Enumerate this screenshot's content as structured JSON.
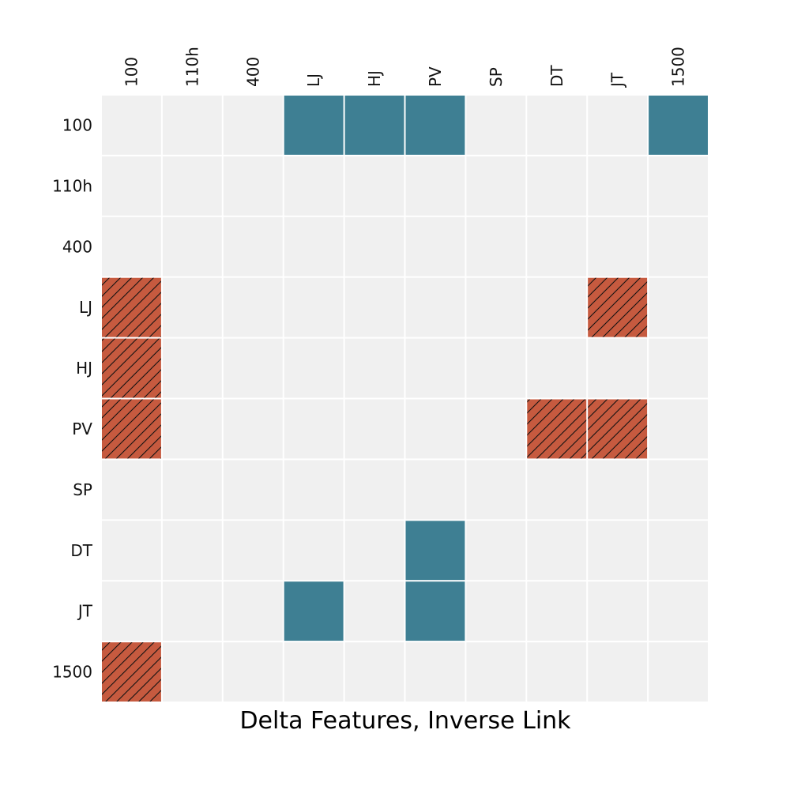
{
  "chart_data": {
    "type": "heatmap",
    "title": "",
    "xlabel": "Delta Features, Inverse Link",
    "ylabel": "",
    "columns": [
      "100",
      "110h",
      "400",
      "LJ",
      "HJ",
      "PV",
      "SP",
      "DT",
      "JT",
      "1500"
    ],
    "rows": [
      "100",
      "110h",
      "400",
      "LJ",
      "HJ",
      "PV",
      "SP",
      "DT",
      "JT",
      "1500"
    ],
    "legend": "none",
    "grid": true,
    "value_key": {
      "0": "empty",
      "1": "blue",
      "2": "red-hatched"
    },
    "colors": {
      "0": "#f0f0f0",
      "1": "#3e7f93",
      "2": "#c65a3f"
    },
    "matrix": [
      [
        0,
        0,
        0,
        1,
        1,
        1,
        0,
        0,
        0,
        1
      ],
      [
        0,
        0,
        0,
        0,
        0,
        0,
        0,
        0,
        0,
        0
      ],
      [
        0,
        0,
        0,
        0,
        0,
        0,
        0,
        0,
        0,
        0
      ],
      [
        2,
        0,
        0,
        0,
        0,
        0,
        0,
        0,
        2,
        0
      ],
      [
        2,
        0,
        0,
        0,
        0,
        0,
        0,
        0,
        0,
        0
      ],
      [
        2,
        0,
        0,
        0,
        0,
        0,
        0,
        2,
        2,
        0
      ],
      [
        0,
        0,
        0,
        0,
        0,
        0,
        0,
        0,
        0,
        0
      ],
      [
        0,
        0,
        0,
        0,
        0,
        1,
        0,
        0,
        0,
        0
      ],
      [
        0,
        0,
        0,
        1,
        0,
        1,
        0,
        0,
        0,
        0
      ],
      [
        2,
        0,
        0,
        0,
        0,
        0,
        0,
        0,
        0,
        0
      ]
    ]
  }
}
